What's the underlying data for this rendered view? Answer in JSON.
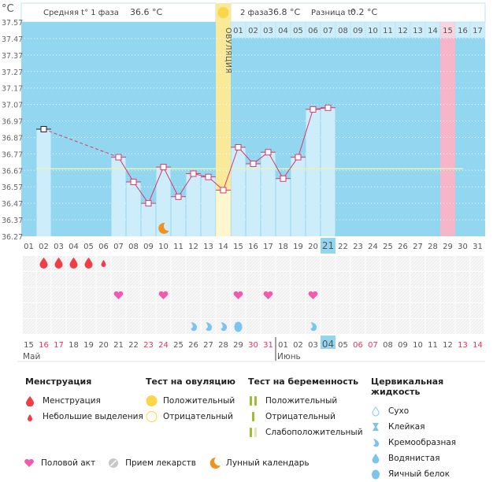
{
  "header": {
    "unit_label": "°C",
    "phase1_label": "Средняя t° 1 фаза",
    "phase1_value": "36.6 °C",
    "phase2_label": "2 фаза",
    "phase2_value": "36.8 °C",
    "diff_label": "Разница t°",
    "diff_value": "0.2 °C",
    "ovulation_label": "ОВУЛЯЦИЯ"
  },
  "colors": {
    "chart_bg": "#93d6f0",
    "bar": "#cdedfa",
    "ovulation_band": "#fbe99a",
    "ovulation_bar": "#fdf6cf",
    "expected_period": "#f7b5c9",
    "line": "#d63b6a",
    "coverline": "#e8f2b8",
    "today_highlight": "#93d6f0",
    "weekend_text": "#e0365e",
    "heart": "#f25ab0",
    "blood": "#ee3f46",
    "fluid": "#7cc3ee",
    "moon": "#f0921e",
    "sun": "#fbd54a"
  },
  "chart_data": {
    "type": "line",
    "title": "",
    "ylabel": "°C",
    "ylim": [
      36.27,
      37.57
    ],
    "y_ticks": [
      "37.57",
      "37.47",
      "37.37",
      "37.27",
      "37.17",
      "37.07",
      "36.97",
      "36.87",
      "36.77",
      "36.67",
      "36.57",
      "36.47",
      "36.37",
      "36.27"
    ],
    "cycle_days": [
      "01",
      "02",
      "03",
      "04",
      "05",
      "06",
      "07",
      "08",
      "09",
      "10",
      "11",
      "12",
      "13",
      "14",
      "15",
      "16",
      "17",
      "18",
      "19",
      "20",
      "21",
      "22",
      "23",
      "24",
      "25",
      "26",
      "27",
      "28",
      "29",
      "30",
      "31"
    ],
    "phase2_days": [
      "01",
      "02",
      "03",
      "04",
      "05",
      "06",
      "07",
      "08",
      "09",
      "10",
      "11",
      "12",
      "13",
      "14",
      "15",
      "16",
      "17"
    ],
    "calendar_dates": [
      "15",
      "16",
      "17",
      "18",
      "19",
      "20",
      "21",
      "22",
      "23",
      "24",
      "25",
      "26",
      "27",
      "28",
      "29",
      "30",
      "31",
      "01",
      "02",
      "03",
      "04",
      "05",
      "06",
      "07",
      "08",
      "09",
      "10",
      "11",
      "12",
      "13",
      "14"
    ],
    "weekend_date_indices": [
      1,
      2,
      8,
      9,
      15,
      16,
      22,
      23,
      29,
      30
    ],
    "months": [
      {
        "label": "Май",
        "start_index": 0
      },
      {
        "label": "Июнь",
        "start_index": 17
      }
    ],
    "today_cycle_day_index": 20,
    "today_date_index": 20,
    "ovulation_day_index": 13,
    "expected_period_day_index": 28,
    "phase2_start_index": 14,
    "coverline": 36.68,
    "series": [
      {
        "name": "Базальная температура",
        "points": [
          {
            "day": 2,
            "value": 36.92,
            "excluded": true
          },
          {
            "day": 7,
            "value": 36.75
          },
          {
            "day": 8,
            "value": 36.6
          },
          {
            "day": 9,
            "value": 36.47
          },
          {
            "day": 10,
            "value": 36.69
          },
          {
            "day": 11,
            "value": 36.51
          },
          {
            "day": 12,
            "value": 36.65
          },
          {
            "day": 13,
            "value": 36.63
          },
          {
            "day": 14,
            "value": 36.55
          },
          {
            "day": 15,
            "value": 36.81
          },
          {
            "day": 16,
            "value": 36.71
          },
          {
            "day": 17,
            "value": 36.78
          },
          {
            "day": 18,
            "value": 36.62
          },
          {
            "day": 19,
            "value": 36.75
          },
          {
            "day": 20,
            "value": 37.04
          },
          {
            "day": 21,
            "value": 37.05
          }
        ]
      }
    ],
    "markers": {
      "moon_days": [
        10
      ],
      "menstruation": [
        {
          "day": 2,
          "type": "heavy"
        },
        {
          "day": 3,
          "type": "heavy"
        },
        {
          "day": 4,
          "type": "heavy"
        },
        {
          "day": 5,
          "type": "heavy"
        },
        {
          "day": 6,
          "type": "light"
        }
      ],
      "intercourse_days": [
        7,
        10,
        15,
        17,
        20
      ],
      "cervical_fluid": [
        {
          "day": 12,
          "type": "creamy"
        },
        {
          "day": 13,
          "type": "creamy"
        },
        {
          "day": 14,
          "type": "creamy"
        },
        {
          "day": 15,
          "type": "eggwhite"
        },
        {
          "day": 20,
          "type": "creamy"
        }
      ]
    }
  },
  "legend": {
    "menstruation": {
      "title": "Менструация",
      "items": [
        {
          "icon": "blood-drop-icon",
          "label": "Менструация"
        },
        {
          "icon": "small-blood-drop-icon",
          "label": "Небольшие выделения"
        }
      ]
    },
    "ovulation_test": {
      "title": "Тест на овуляцию",
      "items": [
        {
          "icon": "filled-circle-icon",
          "label": "Положительный"
        },
        {
          "icon": "empty-circle-icon",
          "label": "Отрицательный"
        }
      ]
    },
    "pregnancy_test": {
      "title": "Тест на беременность",
      "items": [
        {
          "icon": "two-lines-icon",
          "label": "Положительный"
        },
        {
          "icon": "one-line-icon",
          "label": "Отрицательный"
        },
        {
          "icon": "faint-line-icon",
          "label": "Слабоположительный"
        }
      ]
    },
    "cervical_fluid": {
      "title": "Цервикальная жидкость",
      "items": [
        {
          "icon": "dry-drop-icon",
          "label": "Сухо"
        },
        {
          "icon": "sticky-icon",
          "label": "Клейкая"
        },
        {
          "icon": "creamy-icon",
          "label": "Кремообразная"
        },
        {
          "icon": "watery-drop-icon",
          "label": "Водянистая"
        },
        {
          "icon": "eggwhite-icon",
          "label": "Яичный белок"
        }
      ]
    },
    "bottom": [
      {
        "icon": "heart-icon",
        "label": "Половой акт"
      },
      {
        "icon": "pill-icon",
        "label": "Прием лекарств"
      },
      {
        "icon": "moon-icon",
        "label": "Лунный календарь"
      }
    ]
  }
}
